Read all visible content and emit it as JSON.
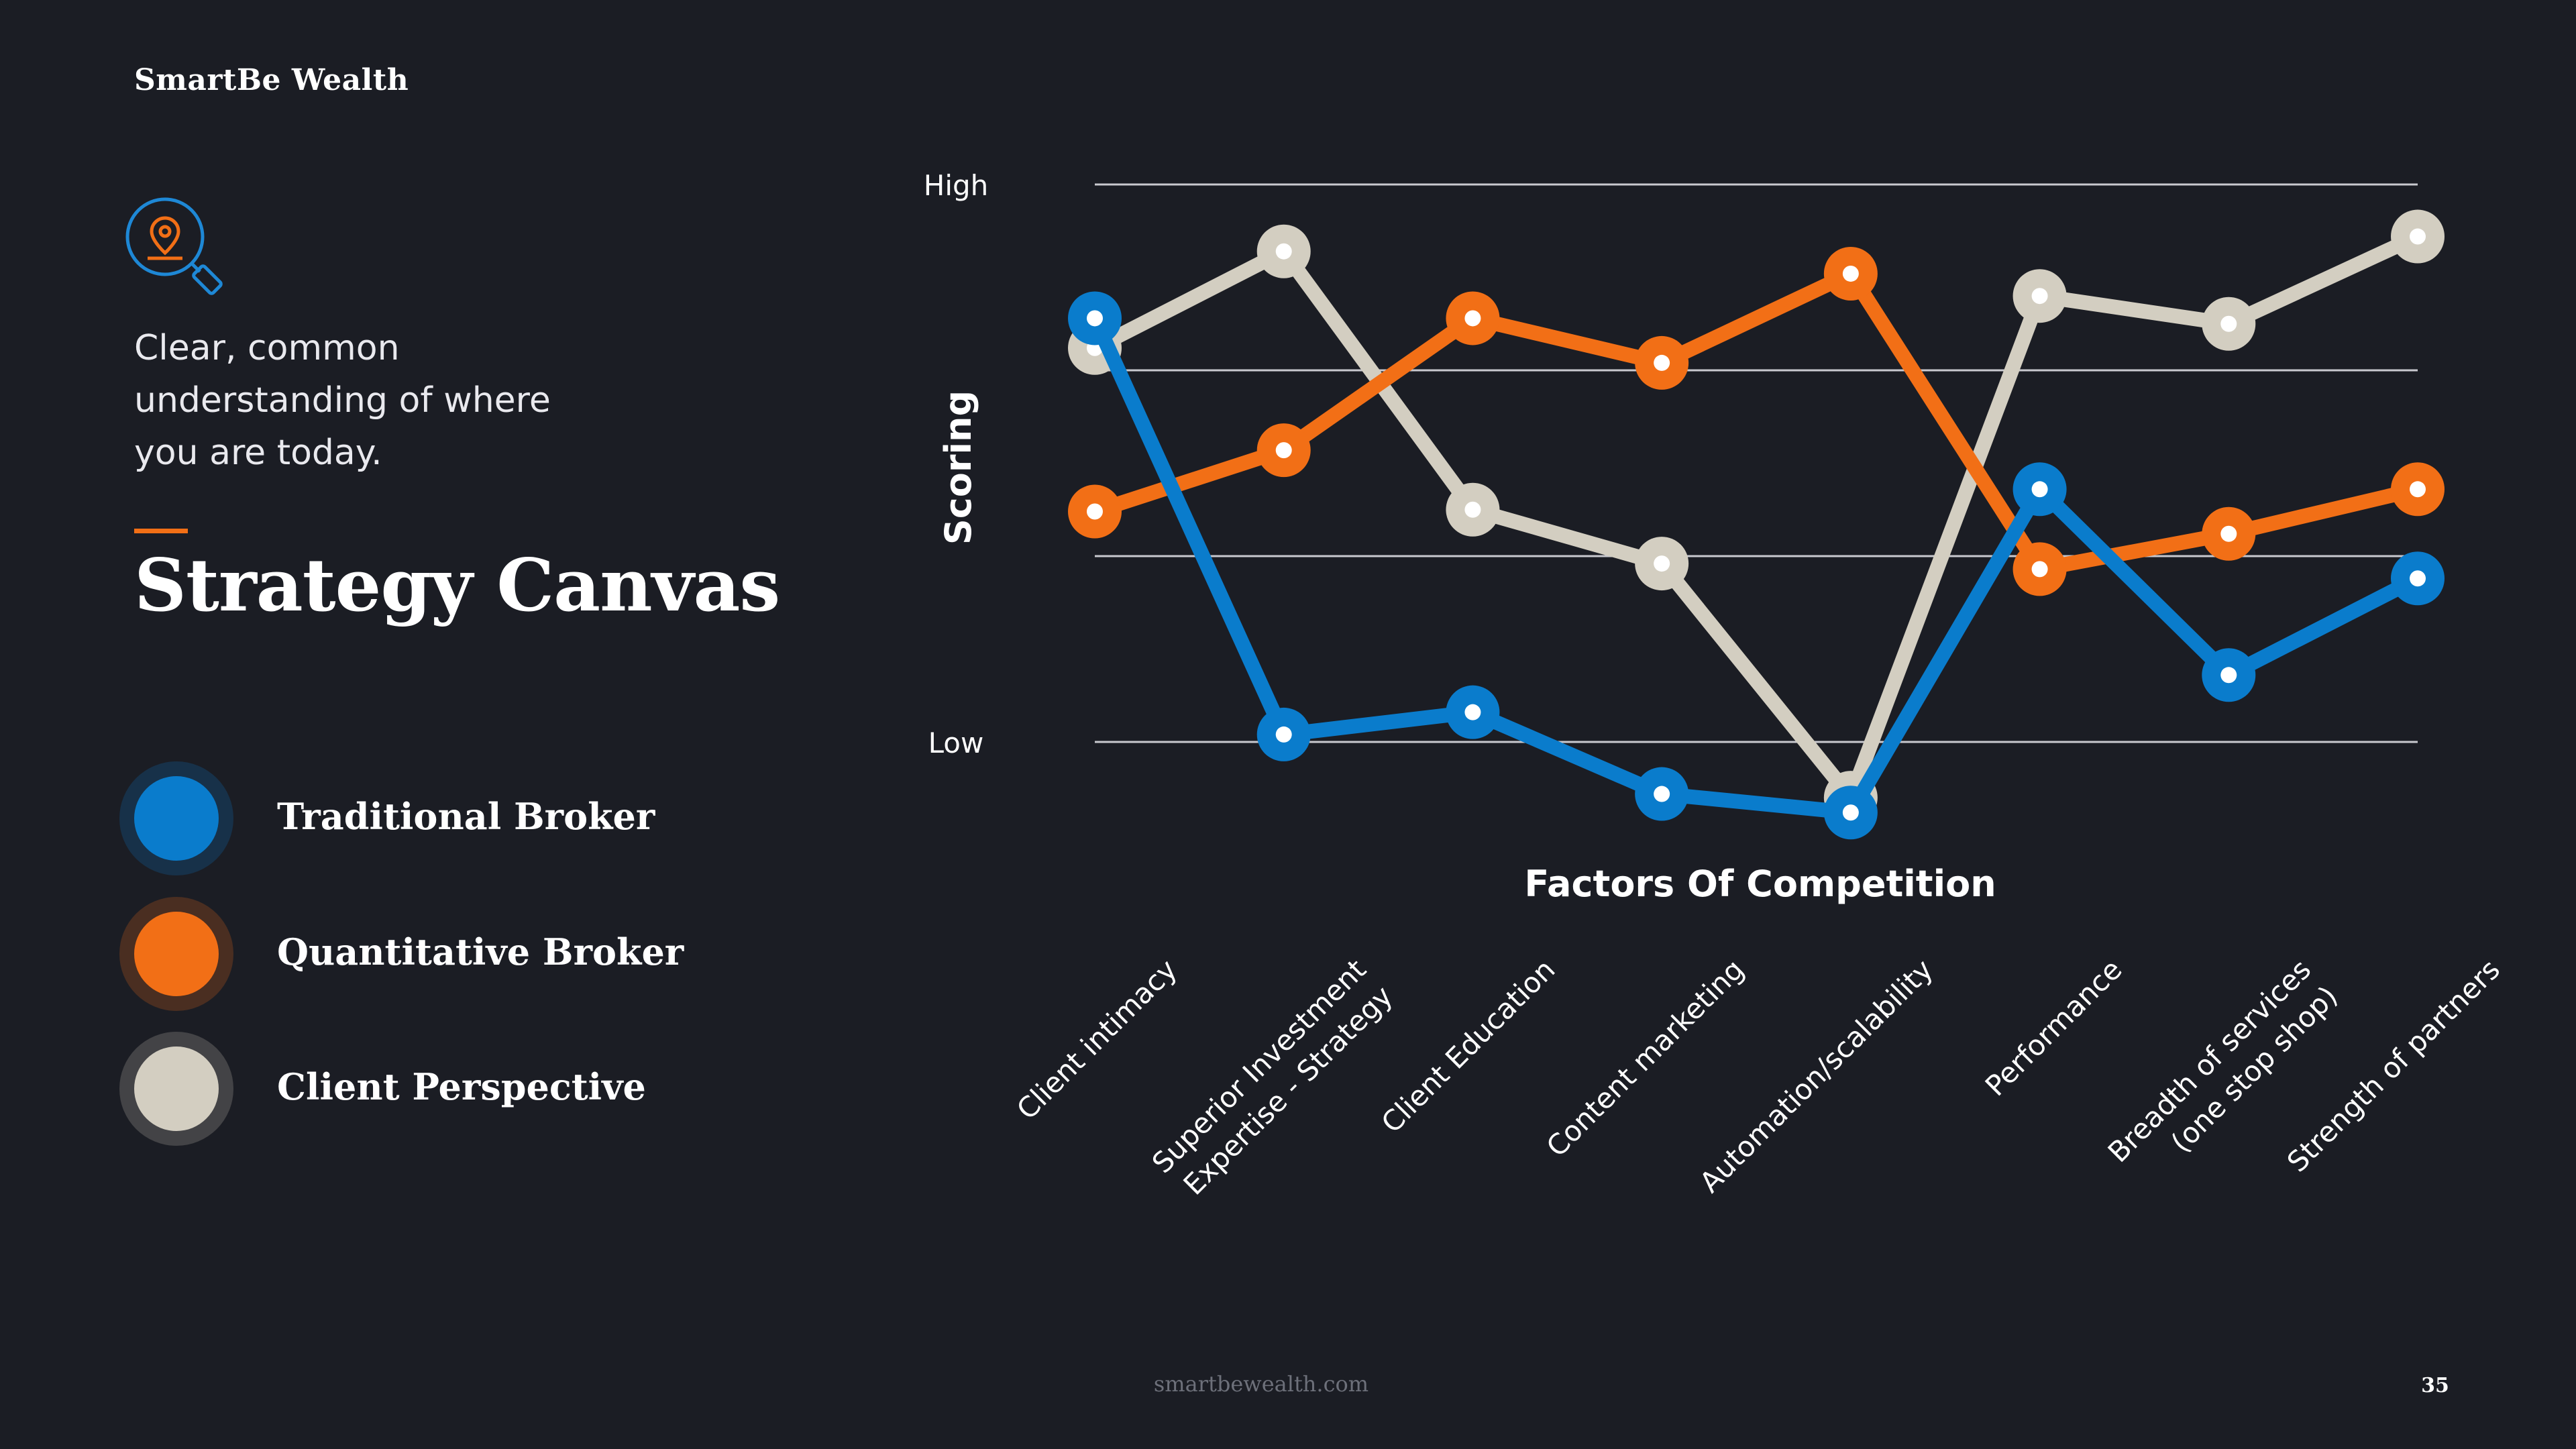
{
  "brand": "SmartBe Wealth",
  "tagline": "Clear, common understanding of where you are today.",
  "title": "Strategy Canvas",
  "legend": [
    {
      "label": "Traditional Broker",
      "color": "#0a7ccc"
    },
    {
      "label": "Quantitative Broker",
      "color": "#f26f16"
    },
    {
      "label": "Client Perspective",
      "color": "#d3cec1"
    }
  ],
  "colors": {
    "background": "#1b1d24",
    "accent": "#f26f16",
    "icon": "#1e88d6"
  },
  "footer": {
    "url": "smartbewealth.com",
    "page_number": "35"
  },
  "chart_data": {
    "type": "line",
    "title": "",
    "xlabel": "Factors Of Competition",
    "ylabel": "Scoring",
    "y_tick_labels": [
      {
        "value": 3,
        "label": "High"
      },
      {
        "value": 0,
        "label": "Low"
      }
    ],
    "ylim": [
      0,
      3
    ],
    "grid": true,
    "categories": [
      "Client intimacy",
      "Superior Investment\nExpertise - Strategy",
      "Client Education",
      "Content marketing",
      "Automation/scalability",
      "Performance",
      "Breadth of services\n(one stop shop)",
      "Strength of partners"
    ],
    "series": [
      {
        "name": "Client Perspective",
        "color": "#d3cec1",
        "values": [
          2.12,
          2.64,
          1.25,
          0.96,
          -0.3,
          2.4,
          2.25,
          2.72
        ]
      },
      {
        "name": "Quantitative Broker",
        "color": "#f26f16",
        "values": [
          1.24,
          1.57,
          2.28,
          2.04,
          2.52,
          0.93,
          1.12,
          1.36
        ]
      },
      {
        "name": "Traditional Broker",
        "color": "#0a7ccc",
        "values": [
          2.28,
          0.04,
          0.16,
          -0.28,
          -0.38,
          1.36,
          0.36,
          0.88
        ]
      }
    ]
  }
}
